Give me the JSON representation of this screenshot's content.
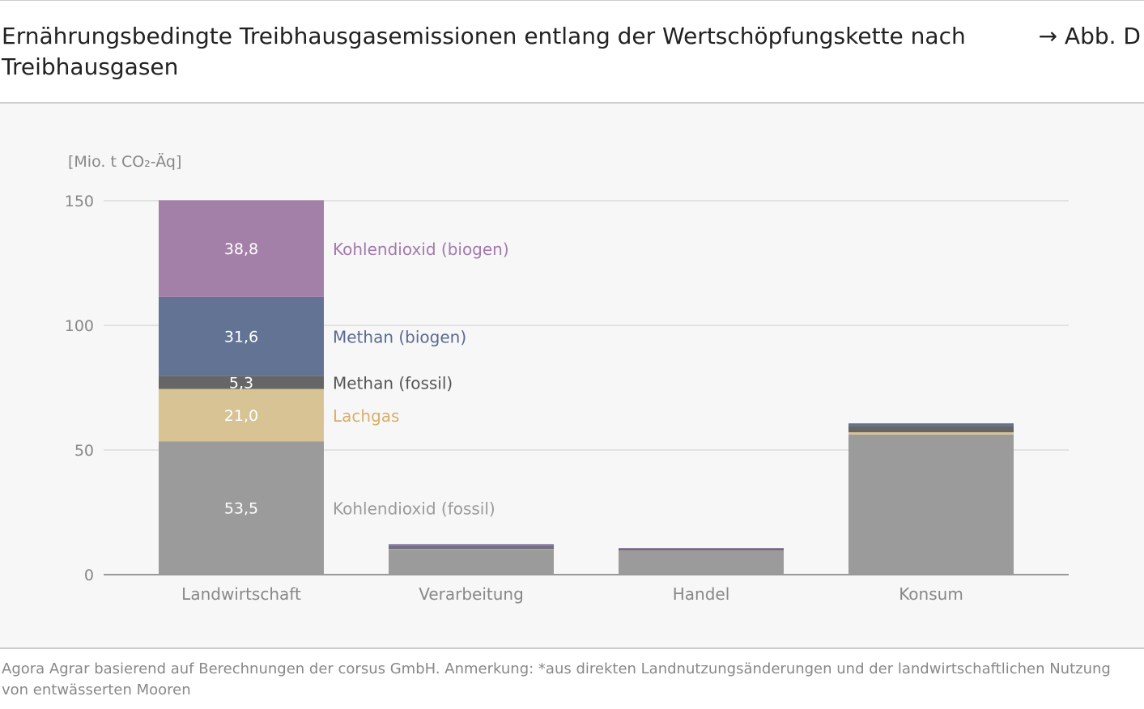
{
  "title": "Ernährungsbedingte Treibhausgasemissionen entlang der Wertschöpfungskette nach Treibhausgasen",
  "figure_ref": "→ Abb. D",
  "source": "Agora Agrar basierend auf Berechnungen der corsus GmbH. Anmerkung: *aus direkten Landnutzungsänderungen und der landwirtschaftlichen Nutzung von entwässerten Mooren",
  "chart_data": {
    "type": "bar",
    "stacked": true,
    "ylabel": "[Mio. t CO₂-Äq]",
    "ylim": [
      0,
      150
    ],
    "yticks": [
      0,
      50,
      100,
      150
    ],
    "grid": true,
    "categories": [
      "Landwirtschaft",
      "Verarbeitung",
      "Handel",
      "Konsum"
    ],
    "series": [
      {
        "name": "Kohlendioxid (fossil)",
        "color": "#9b9b9b",
        "values": [
          53.5,
          10.1,
          9.8,
          56.2
        ],
        "labels": [
          "53,5",
          "",
          "",
          ""
        ]
      },
      {
        "name": "Lachgas",
        "color": "#d8c394",
        "values": [
          21.0,
          0.2,
          0.0,
          0.9
        ],
        "labels": [
          "21,0",
          "",
          "",
          ""
        ]
      },
      {
        "name": "Methan (fossil)",
        "color": "#666666",
        "values": [
          5.3,
          0.6,
          0.7,
          2.6
        ],
        "labels": [
          "5,3",
          "",
          "",
          ""
        ]
      },
      {
        "name": "Methan (biogen)",
        "color": "#637394",
        "values": [
          31.6,
          0.8,
          0.1,
          1.0
        ],
        "labels": [
          "31,6",
          "",
          "",
          ""
        ]
      },
      {
        "name": "Kohlendioxid (biogen)",
        "color": "#a380a7",
        "values": [
          38.8,
          0.6,
          0.1,
          0.0
        ],
        "labels": [
          "38,8",
          "",
          "",
          ""
        ]
      }
    ],
    "legend_label_colors": [
      "#9b9b9b",
      "#d8ae6a",
      "#555555",
      "#5a6a90",
      "#a37aab"
    ]
  }
}
